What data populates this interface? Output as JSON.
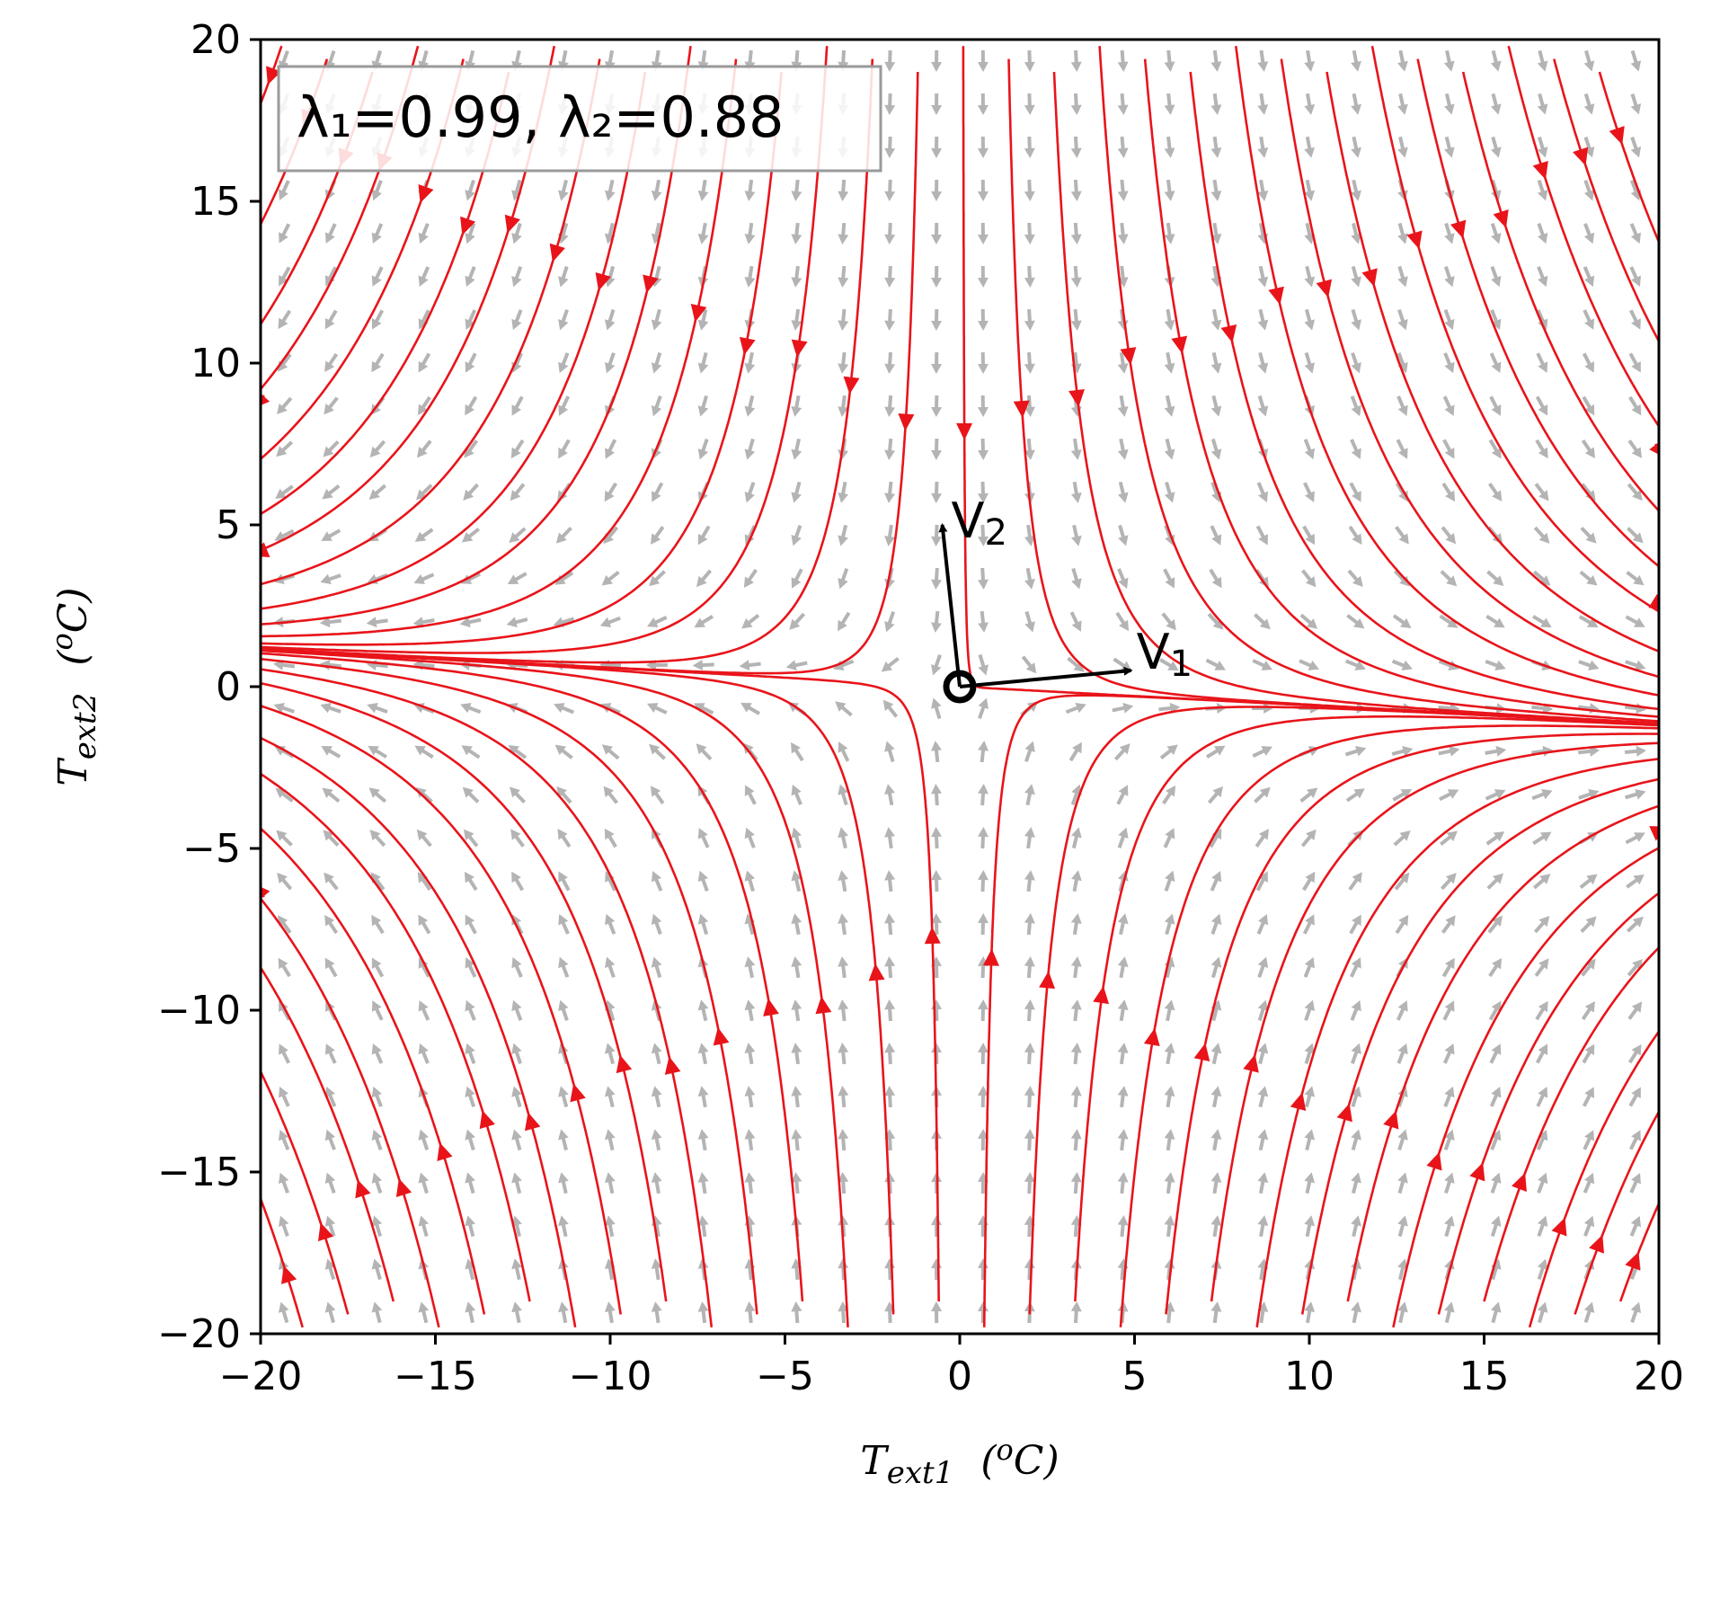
{
  "chart_data": {
    "type": "streamplot",
    "xlabel": {
      "base": "T",
      "sub": "ext1",
      "unit": "(°C)",
      "unit_sup": "o",
      "unit_letter": "C"
    },
    "ylabel": {
      "base": "T",
      "sub": "ext2",
      "unit": "(°C)",
      "unit_sup": "o",
      "unit_letter": "C"
    },
    "xlim": [
      -20,
      20
    ],
    "ylim": [
      -20,
      20
    ],
    "xticks": [
      -20,
      -15,
      -10,
      -5,
      0,
      5,
      10,
      15,
      20
    ],
    "yticks": [
      -20,
      -15,
      -10,
      -5,
      0,
      5,
      10,
      15,
      20
    ],
    "tick_labels_x": [
      "−20",
      "−15",
      "−10",
      "−5",
      "0",
      "5",
      "10",
      "15",
      "20"
    ],
    "tick_labels_y": [
      "−20",
      "−15",
      "−10",
      "−5",
      "0",
      "5",
      "10",
      "15",
      "20"
    ],
    "annotation": "λ₁=0.99, λ₂=0.88",
    "annotation_position": "top-left",
    "fixed_point": {
      "x": 0,
      "y": 0
    },
    "eigenvectors": [
      {
        "name": "V1",
        "letter": "V",
        "sub": "1",
        "x": 4.9,
        "y": 0.5
      },
      {
        "name": "V2",
        "letter": "V",
        "sub": "2",
        "x": -0.5,
        "y": 5.0
      }
    ],
    "colors": {
      "streamline": "#e8141a",
      "vector_field": "#b4b4b4",
      "axes": "#000000"
    }
  }
}
